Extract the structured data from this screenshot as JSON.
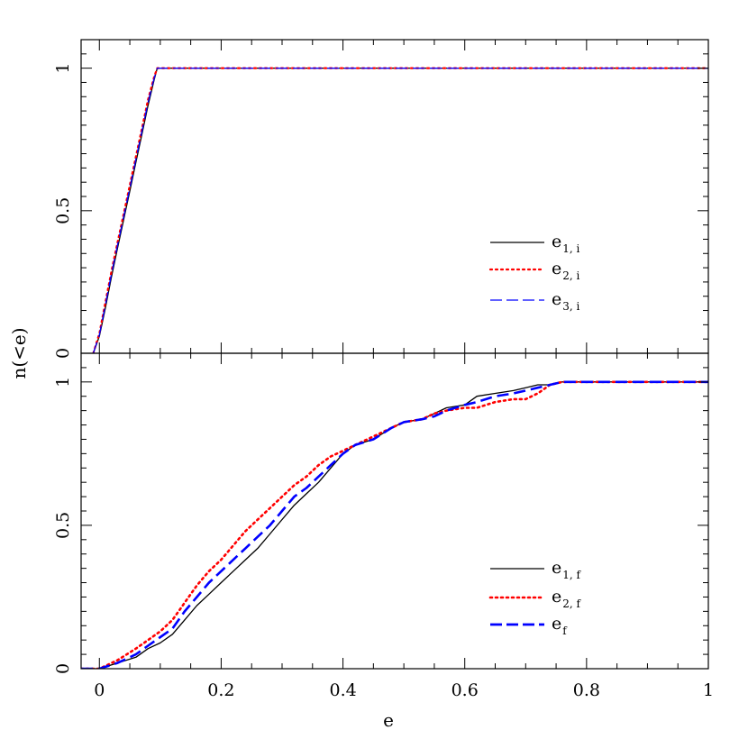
{
  "chart_data": [
    {
      "type": "line",
      "panel": "top",
      "xlim": [
        -0.03,
        1.0
      ],
      "ylim": [
        0,
        1.1
      ],
      "x_ticks": [
        0,
        0.2,
        0.4,
        0.6,
        0.8,
        1
      ],
      "y_ticks": [
        0,
        0.5,
        1
      ],
      "y_tick_labels": [
        "0",
        "0.5",
        "1"
      ],
      "xlabel": "",
      "ylabel": "",
      "legend": "middle-right",
      "grid": false,
      "series": [
        {
          "name": "e",
          "sub": "1, i",
          "color": "#000000",
          "style": "solid",
          "x": [
            -0.01,
            0.0,
            0.01,
            0.02,
            0.03,
            0.04,
            0.05,
            0.06,
            0.07,
            0.08,
            0.09,
            0.095,
            1.0
          ],
          "y": [
            0.0,
            0.06,
            0.16,
            0.27,
            0.37,
            0.47,
            0.57,
            0.67,
            0.77,
            0.87,
            0.96,
            1.0,
            1.0
          ]
        },
        {
          "name": "e",
          "sub": "2, i",
          "color": "#ff0000",
          "style": "dotted",
          "x": [
            -0.01,
            0.0,
            0.01,
            0.02,
            0.03,
            0.04,
            0.05,
            0.06,
            0.07,
            0.08,
            0.09,
            0.095,
            1.0
          ],
          "y": [
            0.0,
            0.07,
            0.18,
            0.29,
            0.39,
            0.49,
            0.59,
            0.69,
            0.79,
            0.89,
            0.97,
            1.0,
            1.0
          ]
        },
        {
          "name": "e",
          "sub": "3, i",
          "color": "#0000ff",
          "style": "dashed",
          "x": [
            -0.01,
            0.0,
            0.01,
            0.02,
            0.03,
            0.04,
            0.05,
            0.06,
            0.07,
            0.08,
            0.09,
            0.095,
            1.0
          ],
          "y": [
            0.0,
            0.065,
            0.17,
            0.28,
            0.38,
            0.48,
            0.58,
            0.68,
            0.78,
            0.88,
            0.965,
            1.0,
            1.0
          ]
        }
      ]
    },
    {
      "type": "line",
      "panel": "bottom",
      "xlim": [
        -0.03,
        1.0
      ],
      "ylim": [
        0,
        1.1
      ],
      "x_ticks": [
        0,
        0.2,
        0.4,
        0.6,
        0.8,
        1
      ],
      "x_tick_labels": [
        "0",
        "0.2",
        "0.4",
        "0.6",
        "0.8",
        "1"
      ],
      "y_ticks": [
        0,
        0.5,
        1
      ],
      "y_tick_labels": [
        "0",
        "0.5",
        "1"
      ],
      "xlabel": "e",
      "ylabel": "n(<e)",
      "legend": "lower-right",
      "grid": false,
      "series": [
        {
          "name": "e",
          "sub": "1, f",
          "color": "#000000",
          "style": "solid",
          "x": [
            -0.03,
            0.0,
            0.03,
            0.06,
            0.08,
            0.1,
            0.12,
            0.14,
            0.16,
            0.18,
            0.2,
            0.22,
            0.24,
            0.26,
            0.28,
            0.3,
            0.32,
            0.34,
            0.36,
            0.38,
            0.4,
            0.42,
            0.45,
            0.48,
            0.5,
            0.53,
            0.55,
            0.57,
            0.6,
            0.62,
            0.65,
            0.68,
            0.7,
            0.72,
            0.74,
            0.76,
            0.8,
            1.0
          ],
          "y": [
            0.0,
            0.0,
            0.02,
            0.04,
            0.07,
            0.09,
            0.12,
            0.17,
            0.22,
            0.26,
            0.3,
            0.34,
            0.38,
            0.42,
            0.47,
            0.52,
            0.57,
            0.61,
            0.65,
            0.7,
            0.75,
            0.78,
            0.8,
            0.84,
            0.86,
            0.87,
            0.89,
            0.91,
            0.92,
            0.95,
            0.96,
            0.97,
            0.98,
            0.99,
            0.99,
            1.0,
            1.0,
            1.0
          ]
        },
        {
          "name": "e",
          "sub": "2, f",
          "color": "#ff0000",
          "style": "dotted",
          "x": [
            -0.03,
            0.0,
            0.03,
            0.06,
            0.08,
            0.1,
            0.12,
            0.14,
            0.16,
            0.18,
            0.2,
            0.22,
            0.24,
            0.26,
            0.28,
            0.3,
            0.32,
            0.34,
            0.36,
            0.38,
            0.4,
            0.42,
            0.45,
            0.48,
            0.5,
            0.53,
            0.55,
            0.57,
            0.6,
            0.62,
            0.65,
            0.68,
            0.7,
            0.72,
            0.74,
            0.76,
            0.8,
            1.0
          ],
          "y": [
            0.0,
            0.0,
            0.03,
            0.07,
            0.1,
            0.13,
            0.17,
            0.23,
            0.29,
            0.34,
            0.38,
            0.43,
            0.48,
            0.52,
            0.56,
            0.6,
            0.64,
            0.67,
            0.71,
            0.74,
            0.76,
            0.78,
            0.81,
            0.84,
            0.86,
            0.87,
            0.89,
            0.9,
            0.91,
            0.91,
            0.93,
            0.94,
            0.94,
            0.96,
            0.99,
            1.0,
            1.0,
            1.0
          ]
        },
        {
          "name": "e",
          "sub": "f",
          "color": "#0000ff",
          "style": "dashed",
          "x": [
            -0.03,
            0.0,
            0.03,
            0.06,
            0.08,
            0.1,
            0.12,
            0.14,
            0.16,
            0.18,
            0.2,
            0.22,
            0.24,
            0.26,
            0.28,
            0.3,
            0.32,
            0.34,
            0.36,
            0.38,
            0.4,
            0.42,
            0.45,
            0.48,
            0.5,
            0.53,
            0.55,
            0.57,
            0.6,
            0.62,
            0.65,
            0.68,
            0.7,
            0.72,
            0.74,
            0.76,
            0.8,
            1.0
          ],
          "y": [
            0.0,
            0.0,
            0.02,
            0.05,
            0.08,
            0.11,
            0.14,
            0.2,
            0.25,
            0.3,
            0.34,
            0.38,
            0.42,
            0.46,
            0.5,
            0.55,
            0.6,
            0.63,
            0.67,
            0.71,
            0.75,
            0.78,
            0.8,
            0.84,
            0.86,
            0.87,
            0.88,
            0.9,
            0.92,
            0.93,
            0.95,
            0.96,
            0.97,
            0.98,
            0.99,
            1.0,
            1.0,
            1.0
          ]
        }
      ]
    }
  ]
}
